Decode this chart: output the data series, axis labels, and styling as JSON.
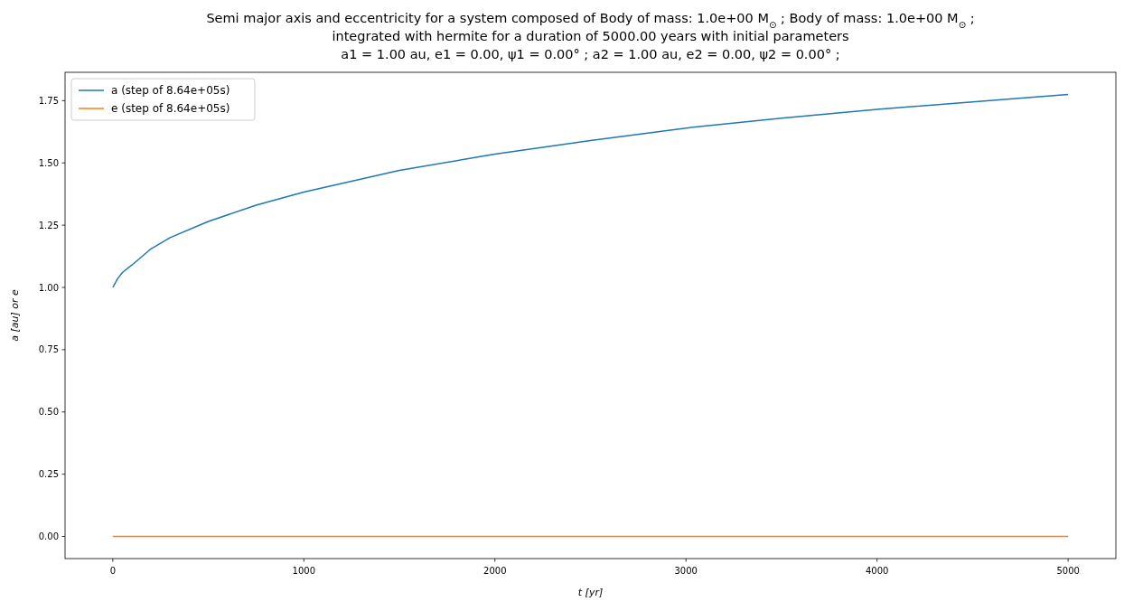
{
  "chart_data": {
    "type": "line",
    "title": "Semi major axis and eccentricity for a system composed of Body of mass: 1.0e+00 M$_{⊙}$ ; Body of mass: 1.0e+00 M$_{⊙}$ ;\nintegrated with hermite for a duration of 5000.00 years with initial parameters\na1 = 1.00 au, e1 = 0.00, ψ1 = 0.00° ; a2 = 1.00 au, e2 = 0.00, ψ2 = 0.00° ;",
    "xlabel": "t [yr]",
    "ylabel": "a [au] or e",
    "x": [
      0,
      25,
      50,
      100,
      200,
      300,
      500,
      750,
      1000,
      1500,
      2000,
      2500,
      3000,
      3500,
      4000,
      4500,
      5000
    ],
    "series": [
      {
        "name": "a (step of 8.64e+05s)",
        "color": "#1f77b4",
        "values": [
          1.0,
          1.035,
          1.06,
          1.09,
          1.155,
          1.2,
          1.265,
          1.33,
          1.383,
          1.47,
          1.535,
          1.59,
          1.64,
          1.68,
          1.715,
          1.745,
          1.775
        ]
      },
      {
        "name": "e (step of 8.64e+05s)",
        "color": "#ff7f0e",
        "values": [
          0,
          0,
          0,
          0,
          0,
          0,
          0,
          0,
          0,
          0,
          0,
          0,
          0,
          0,
          0,
          0,
          0
        ]
      }
    ],
    "xlim": [
      -250,
      5250
    ],
    "ylim": [
      -0.08875,
      1.86375
    ],
    "xticks": [
      0,
      1000,
      2000,
      3000,
      4000,
      5000
    ],
    "yticks": [
      {
        "value": 0,
        "label": "0.00"
      },
      {
        "value": 0.25,
        "label": "0.25"
      },
      {
        "value": 0.5,
        "label": "0.50"
      },
      {
        "value": 0.75,
        "label": "0.75"
      },
      {
        "value": 1,
        "label": "1.00"
      },
      {
        "value": 1.25,
        "label": "1.25"
      },
      {
        "value": 1.5,
        "label": "1.50"
      },
      {
        "value": 1.75,
        "label": "1.75"
      }
    ],
    "legend": "top left",
    "grid": false,
    "line_style": "solid",
    "marker": "none"
  }
}
